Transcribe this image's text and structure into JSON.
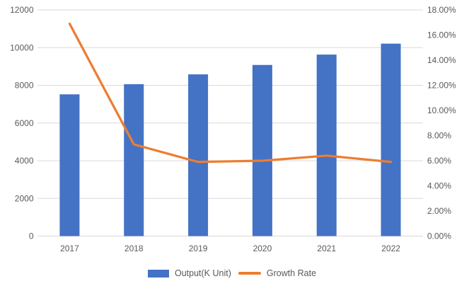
{
  "chart_data": {
    "type": "combo",
    "title": "",
    "categories": [
      "2017",
      "2018",
      "2019",
      "2020",
      "2021",
      "2022"
    ],
    "series": [
      {
        "name": "Output(K Unit)",
        "type": "bar",
        "axis": "left",
        "color": "#4472C4",
        "values": [
          7520,
          8060,
          8580,
          9080,
          9630,
          10210
        ]
      },
      {
        "name": "Growth Rate",
        "type": "line",
        "axis": "right",
        "color": "#ED7D31",
        "unit": "%",
        "values": [
          16.9,
          7.3,
          5.9,
          6.0,
          6.4,
          5.9
        ]
      }
    ],
    "left_axis": {
      "min": 0,
      "max": 12000,
      "step": 2000,
      "tick_labels": [
        "0",
        "2000",
        "4000",
        "6000",
        "8000",
        "10000",
        "12000"
      ]
    },
    "right_axis": {
      "min": 0,
      "max": 18,
      "step": 2,
      "tick_labels": [
        "0.00%",
        "2.00%",
        "4.00%",
        "6.00%",
        "8.00%",
        "10.00%",
        "12.00%",
        "14.00%",
        "16.00%",
        "18.00%"
      ]
    },
    "grid": true,
    "legend_position": "bottom"
  },
  "legend": {
    "output_label": "Output(K Unit)",
    "growth_label": "Growth Rate"
  },
  "colors": {
    "bar": "#4472C4",
    "line": "#ED7D31",
    "text": "#595959",
    "gridline": "#D9D9D9",
    "background": "#FFFFFF"
  }
}
